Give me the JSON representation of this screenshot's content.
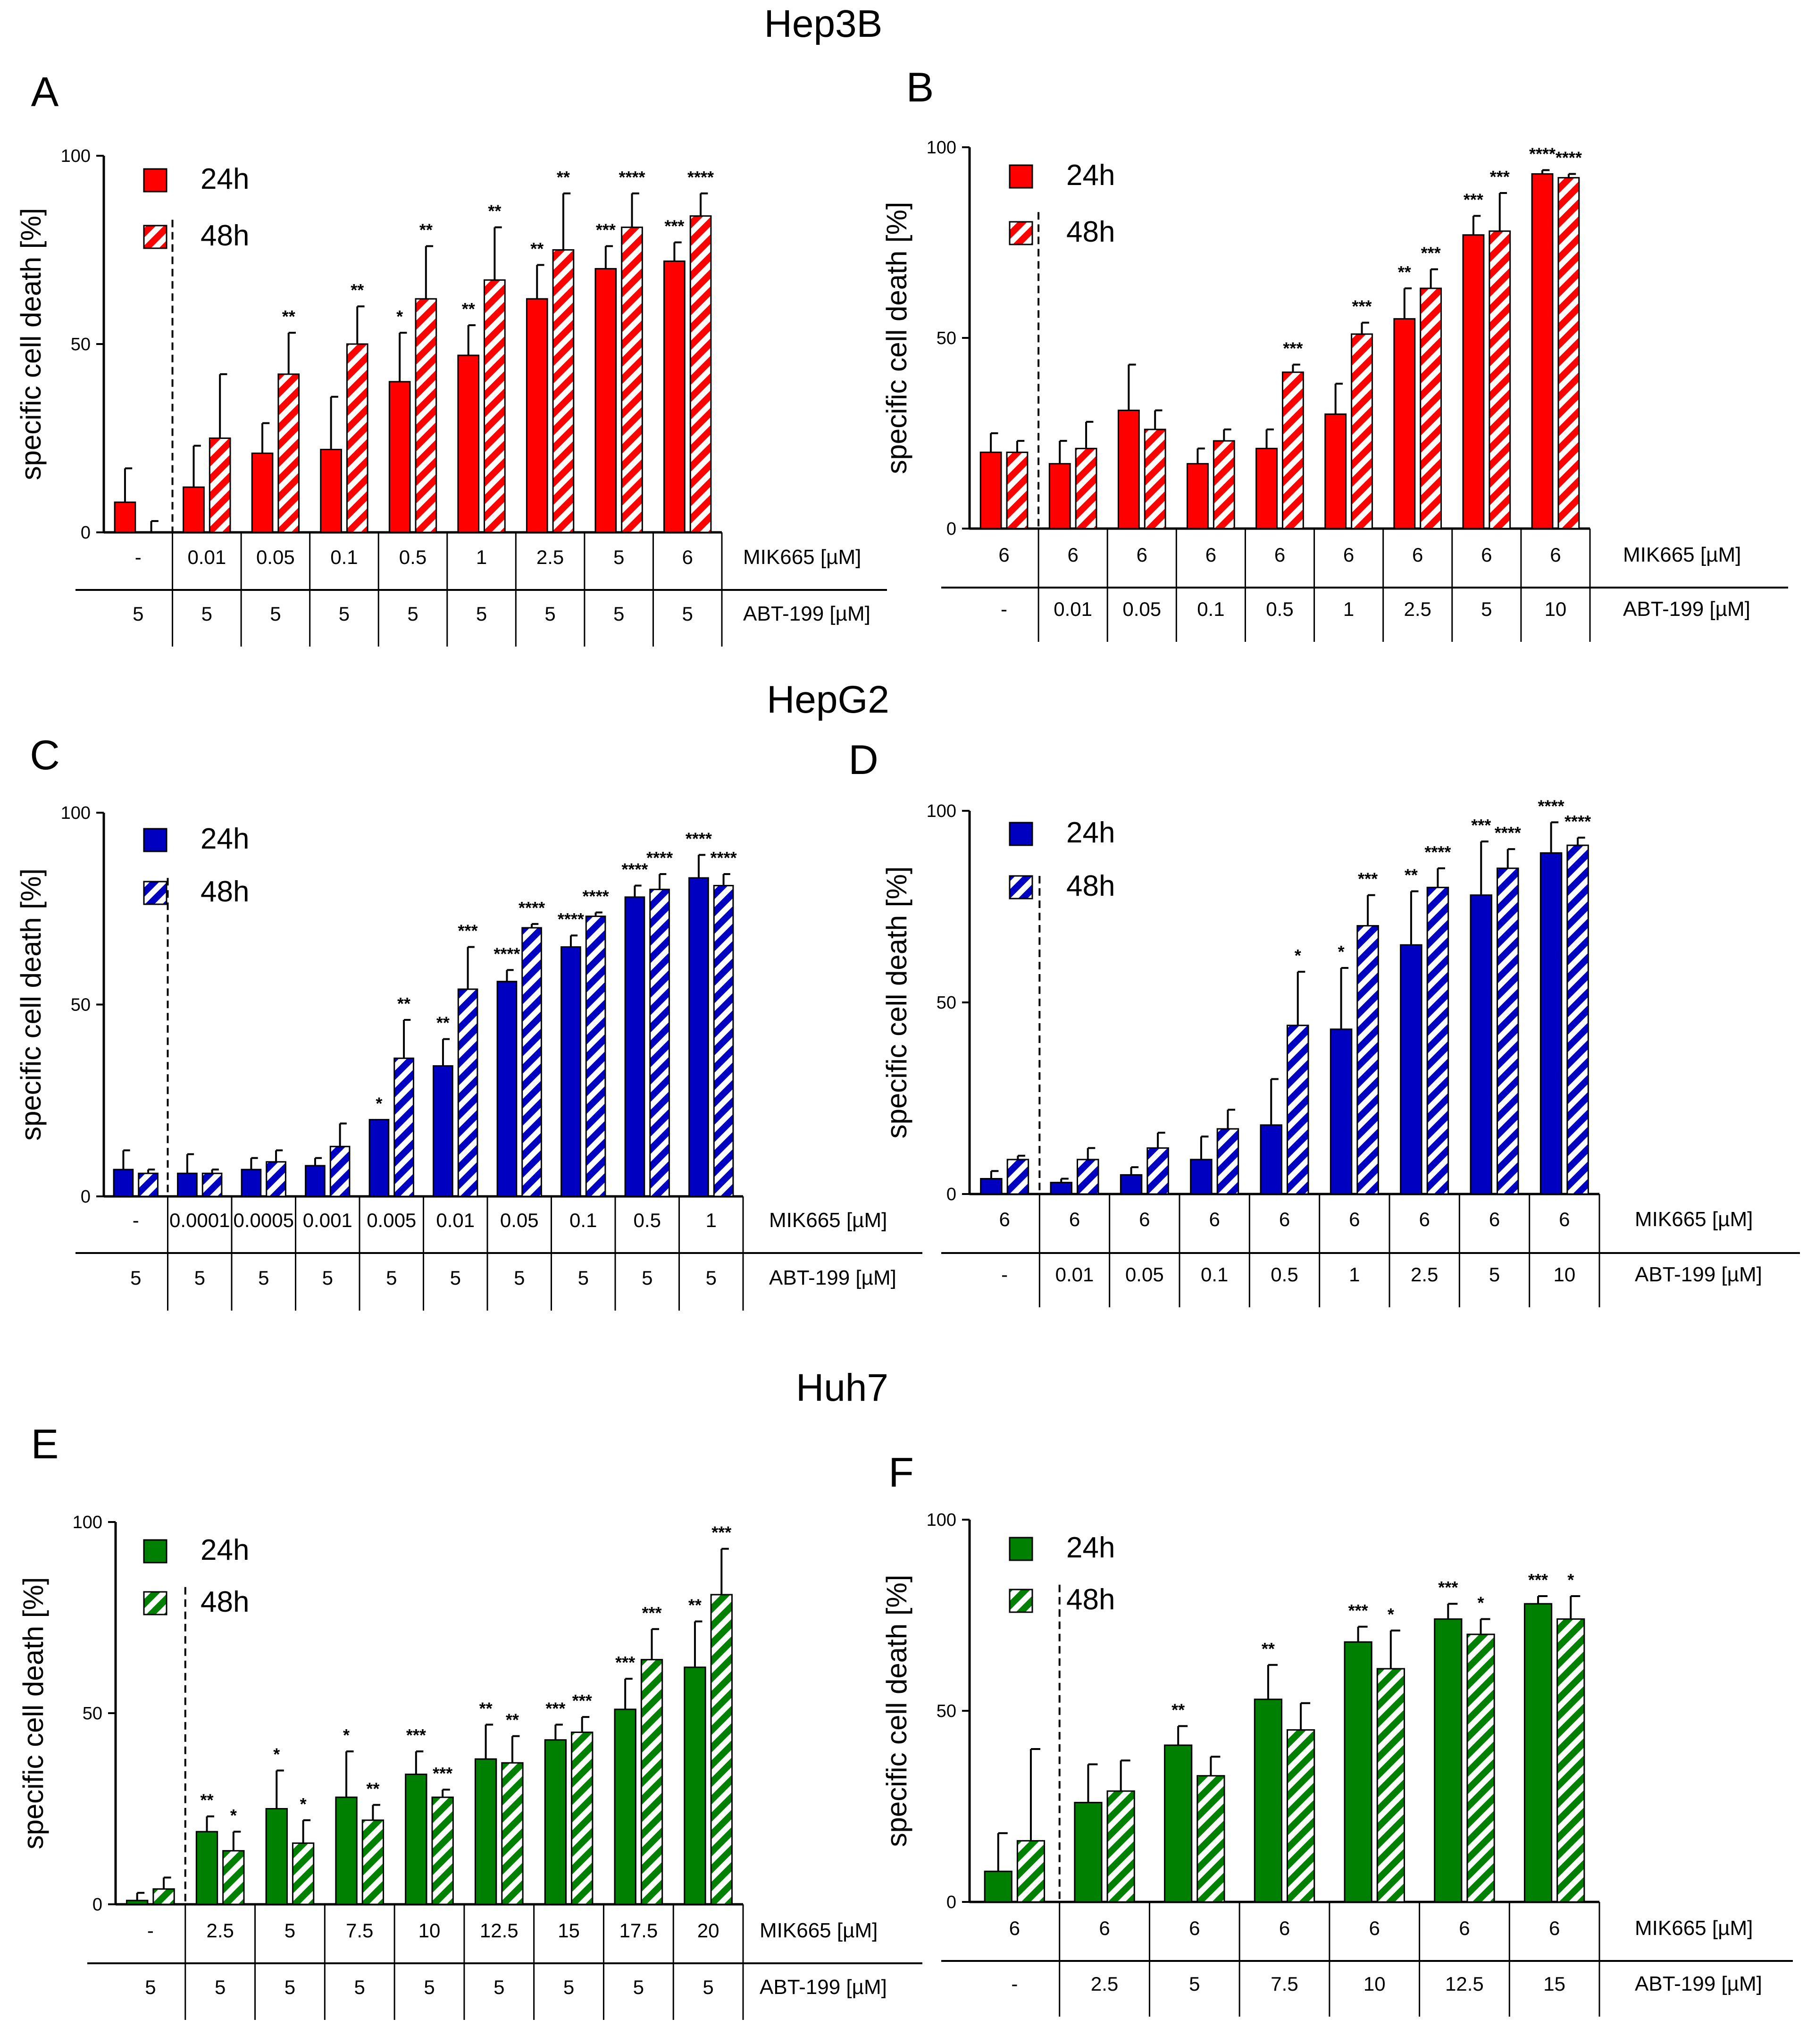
{
  "figure": {
    "cell_lines": [
      "Hep3B",
      "HepG2",
      "Huh7"
    ]
  },
  "chart_data": [
    {
      "panel": "A",
      "cell_line": "Hep3B",
      "type": "bar",
      "color": "#ff0000",
      "ylabel": "specific cell death [%]",
      "ylim": [
        0,
        100
      ],
      "yticks": [
        0,
        50,
        100
      ],
      "legend": [
        "24h",
        "48h"
      ],
      "vehicle_divider_after": 0,
      "rows": [
        {
          "label": "MIK665 [µM]",
          "values": [
            "-",
            "0.01",
            "0.05",
            "0.1",
            "0.5",
            "1",
            "2.5",
            "5",
            "6"
          ]
        },
        {
          "label": "ABT-199 [µM]",
          "values": [
            "5",
            "5",
            "5",
            "5",
            "5",
            "5",
            "5",
            "5",
            "5"
          ]
        }
      ],
      "series": [
        {
          "name": "24h",
          "values": [
            8,
            12,
            21,
            22,
            40,
            47,
            62,
            70,
            72
          ],
          "errors": [
            9,
            11,
            8,
            14,
            13,
            8,
            9,
            6,
            5
          ],
          "stars": [
            "",
            "",
            "",
            "",
            "*",
            "**",
            "**",
            "***",
            "***"
          ]
        },
        {
          "name": "48h",
          "values": [
            0,
            25,
            42,
            50,
            62,
            67,
            75,
            81,
            84
          ],
          "errors": [
            3,
            17,
            11,
            10,
            14,
            14,
            15,
            9,
            6
          ],
          "stars": [
            "",
            "",
            "**",
            "**",
            "**",
            "**",
            "**",
            "****",
            "****"
          ]
        }
      ]
    },
    {
      "panel": "B",
      "cell_line": "Hep3B",
      "type": "bar",
      "color": "#ff0000",
      "ylabel": "specific cell death [%]",
      "ylim": [
        0,
        100
      ],
      "yticks": [
        0,
        50,
        100
      ],
      "legend": [
        "24h",
        "48h"
      ],
      "vehicle_divider_after": 0,
      "rows": [
        {
          "label": "MIK665 [µM]",
          "values": [
            "6",
            "6",
            "6",
            "6",
            "6",
            "6",
            "6",
            "6",
            "6"
          ]
        },
        {
          "label": "ABT-199 [µM]",
          "values": [
            "-",
            "0.01",
            "0.05",
            "0.1",
            "0.5",
            "1",
            "2.5",
            "5",
            "10"
          ]
        }
      ],
      "series": [
        {
          "name": "24h",
          "values": [
            20,
            17,
            31,
            17,
            21,
            30,
            55,
            77,
            93
          ],
          "errors": [
            5,
            6,
            12,
            4,
            5,
            8,
            8,
            5,
            1
          ],
          "stars": [
            "",
            "",
            "",
            "",
            "",
            "",
            "**",
            "***",
            "****"
          ]
        },
        {
          "name": "48h",
          "values": [
            20,
            21,
            26,
            23,
            41,
            51,
            63,
            78,
            92
          ],
          "errors": [
            3,
            7,
            5,
            3,
            2,
            3,
            5,
            10,
            1
          ],
          "stars": [
            "",
            "",
            "",
            "",
            "***",
            "***",
            "***",
            "***",
            "****"
          ]
        }
      ]
    },
    {
      "panel": "C",
      "cell_line": "HepG2",
      "type": "bar",
      "color": "#0000c0",
      "ylabel": "specific cell death [%]",
      "ylim": [
        0,
        100
      ],
      "yticks": [
        0,
        50,
        100
      ],
      "legend": [
        "24h",
        "48h"
      ],
      "vehicle_divider_after": 0,
      "rows": [
        {
          "label": "MIK665 [µM]",
          "values": [
            "-",
            "0.0001",
            "0.0005",
            "0.001",
            "0.005",
            "0.01",
            "0.05",
            "0.1",
            "0.5",
            "1"
          ]
        },
        {
          "label": "ABT-199 [µM]",
          "values": [
            "5",
            "5",
            "5",
            "5",
            "5",
            "5",
            "5",
            "5",
            "5",
            "5"
          ]
        }
      ],
      "series": [
        {
          "name": "24h",
          "values": [
            7,
            6,
            7,
            8,
            20,
            34,
            56,
            65,
            78,
            83
          ],
          "errors": [
            5,
            5,
            3,
            2,
            0,
            7,
            3,
            3,
            3,
            6
          ],
          "stars": [
            "",
            "",
            "",
            "",
            "*",
            "**",
            "****",
            "****",
            "****",
            "****"
          ]
        },
        {
          "name": "48h",
          "values": [
            6,
            6,
            9,
            13,
            36,
            54,
            70,
            73,
            80,
            81
          ],
          "errors": [
            1,
            1,
            3,
            6,
            10,
            11,
            1,
            1,
            4,
            3
          ],
          "stars": [
            "",
            "",
            "",
            "",
            "**",
            "***",
            "****",
            "****",
            "****",
            "****"
          ]
        }
      ]
    },
    {
      "panel": "D",
      "cell_line": "HepG2",
      "type": "bar",
      "color": "#0000c0",
      "ylabel": "specific cell death [%]",
      "ylim": [
        0,
        100
      ],
      "yticks": [
        0,
        50,
        100
      ],
      "legend": [
        "24h",
        "48h"
      ],
      "vehicle_divider_after": 0,
      "rows": [
        {
          "label": "MIK665 [µM]",
          "values": [
            "6",
            "6",
            "6",
            "6",
            "6",
            "6",
            "6",
            "6",
            "6"
          ]
        },
        {
          "label": "ABT-199 [µM]",
          "values": [
            "-",
            "0.01",
            "0.05",
            "0.1",
            "0.5",
            "1",
            "2.5",
            "5",
            "10"
          ]
        }
      ],
      "series": [
        {
          "name": "24h",
          "values": [
            4,
            3,
            5,
            9,
            18,
            43,
            65,
            78,
            89
          ],
          "errors": [
            2,
            1,
            2,
            6,
            12,
            16,
            14,
            14,
            8
          ],
          "stars": [
            "",
            "",
            "",
            "",
            "",
            "*",
            "**",
            "***",
            "****"
          ]
        },
        {
          "name": "48h",
          "values": [
            9,
            9,
            12,
            17,
            44,
            70,
            80,
            85,
            91
          ],
          "errors": [
            1,
            3,
            4,
            5,
            14,
            8,
            5,
            5,
            2
          ],
          "stars": [
            "",
            "",
            "",
            "",
            "*",
            "***",
            "****",
            "****",
            "****"
          ]
        }
      ]
    },
    {
      "panel": "E",
      "cell_line": "Huh7",
      "type": "bar",
      "color": "#008000",
      "ylabel": "specific cell death [%]",
      "ylim": [
        0,
        100
      ],
      "yticks": [
        0,
        50,
        100
      ],
      "legend": [
        "24h",
        "48h"
      ],
      "vehicle_divider_after": 0,
      "rows": [
        {
          "label": "MIK665 [µM]",
          "values": [
            "-",
            "2.5",
            "5",
            "7.5",
            "10",
            "12.5",
            "15",
            "17.5",
            "20"
          ]
        },
        {
          "label": "ABT-199 [µM]",
          "values": [
            "5",
            "5",
            "5",
            "5",
            "5",
            "5",
            "5",
            "5",
            "5"
          ]
        }
      ],
      "series": [
        {
          "name": "24h",
          "values": [
            1,
            19,
            25,
            28,
            34,
            38,
            43,
            51,
            62
          ],
          "errors": [
            2,
            4,
            10,
            12,
            6,
            9,
            4,
            8,
            12
          ],
          "stars": [
            "",
            "**",
            "*",
            "*",
            "***",
            "**",
            "***",
            "***",
            "**"
          ]
        },
        {
          "name": "48h",
          "values": [
            4,
            14,
            16,
            22,
            28,
            37,
            45,
            64,
            81
          ],
          "errors": [
            3,
            5,
            6,
            4,
            2,
            7,
            4,
            8,
            12
          ],
          "stars": [
            "",
            "*",
            "*",
            "**",
            "***",
            "**",
            "***",
            "***",
            "***"
          ]
        }
      ]
    },
    {
      "panel": "F",
      "cell_line": "Huh7",
      "type": "bar",
      "color": "#008000",
      "ylabel": "specific cell death [%]",
      "ylim": [
        0,
        100
      ],
      "yticks": [
        0,
        50,
        100
      ],
      "legend": [
        "24h",
        "48h"
      ],
      "vehicle_divider_after": 0,
      "rows": [
        {
          "label": "MIK665 [µM]",
          "values": [
            "6",
            "6",
            "6",
            "6",
            "6",
            "6",
            "6"
          ]
        },
        {
          "label": "ABT-199 [µM]",
          "values": [
            "-",
            "2.5",
            "5",
            "7.5",
            "10",
            "12.5",
            "15"
          ]
        }
      ],
      "series": [
        {
          "name": "24h",
          "values": [
            8,
            26,
            41,
            53,
            68,
            74,
            78
          ],
          "errors": [
            10,
            10,
            5,
            9,
            4,
            4,
            2
          ],
          "stars": [
            "",
            "",
            "**",
            "**",
            "***",
            "***",
            "***"
          ]
        },
        {
          "name": "48h",
          "values": [
            16,
            29,
            33,
            45,
            61,
            70,
            74
          ],
          "errors": [
            24,
            8,
            5,
            7,
            10,
            4,
            6
          ],
          "stars": [
            "",
            "",
            "",
            "",
            "*",
            "*",
            "*"
          ]
        }
      ]
    }
  ]
}
